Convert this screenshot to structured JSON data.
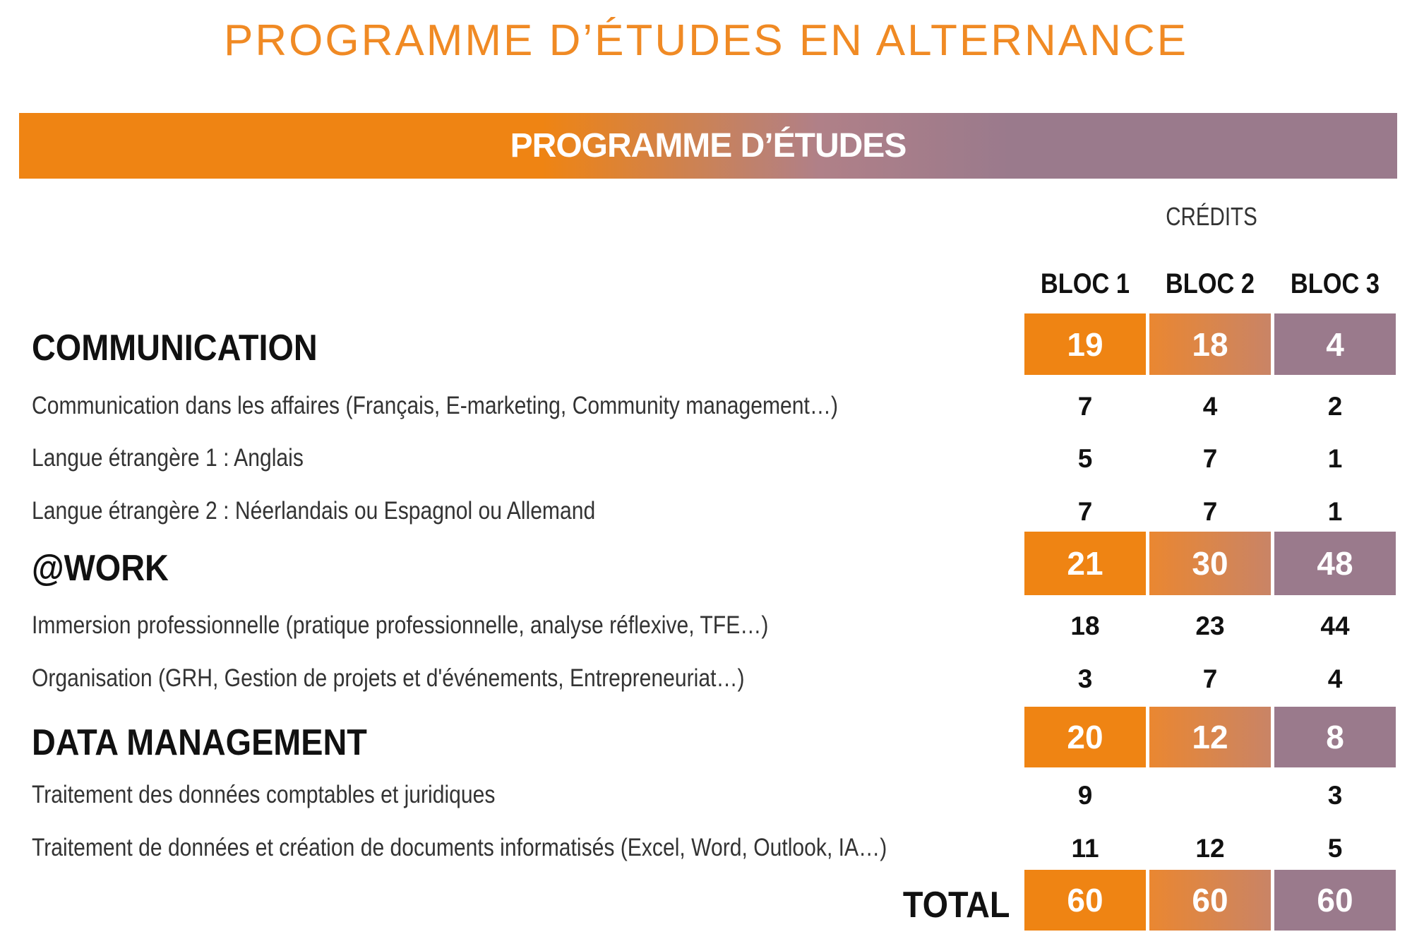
{
  "page_title": "PROGRAMME D’ÉTUDES EN ALTERNANCE",
  "banner": "PROGRAMME D’ÉTUDES",
  "credits_label": "CRÉDITS",
  "bloc_headers": [
    "BLOC 1",
    "BLOC 2",
    "BLOC 3"
  ],
  "sections": [
    {
      "title": "COMMUNICATION",
      "totals": [
        "19",
        "18",
        "4"
      ],
      "items": [
        {
          "label": "Communication dans les affaires (Français, E-marketing, Community management…)",
          "values": [
            "7",
            "4",
            "2"
          ]
        },
        {
          "label": "Langue étrangère 1 : Anglais",
          "values": [
            "5",
            "7",
            "1"
          ]
        },
        {
          "label": "Langue étrangère 2 : Néerlandais ou Espagnol ou Allemand",
          "values": [
            "7",
            "7",
            "1"
          ]
        }
      ]
    },
    {
      "title": "@WORK",
      "totals": [
        "21",
        "30",
        "48"
      ],
      "items": [
        {
          "label": "Immersion professionnelle (pratique professionnelle, analyse réflexive, TFE…)",
          "values": [
            "18",
            "23",
            "44"
          ]
        },
        {
          "label": "Organisation (GRH, Gestion de projets et d'événements, Entrepreneuriat…)",
          "values": [
            "3",
            "7",
            "4"
          ]
        }
      ]
    },
    {
      "title": "DATA MANAGEMENT",
      "totals": [
        "20",
        "12",
        "8"
      ],
      "items": [
        {
          "label": "Traitement des données comptables et juridiques",
          "values": [
            "9",
            "",
            "3"
          ]
        },
        {
          "label": "Traitement de données et création de documents informatisés (Excel, Word, Outlook, IA…)",
          "values": [
            "11",
            "12",
            "5"
          ]
        }
      ]
    }
  ],
  "total": {
    "label": "TOTAL",
    "values": [
      "60",
      "60",
      "60"
    ]
  }
}
